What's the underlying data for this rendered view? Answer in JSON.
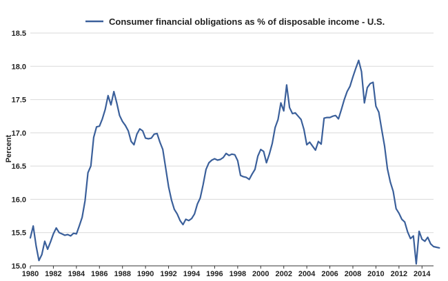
{
  "chart_data": {
    "type": "line",
    "title": "",
    "xlabel": "",
    "ylabel": "Percent",
    "xlim": [
      1980,
      2015
    ],
    "ylim": [
      15.0,
      18.5
    ],
    "x_ticks": [
      "1980",
      "1982",
      "1984",
      "1986",
      "1988",
      "1990",
      "1992",
      "1994",
      "1996",
      "1998",
      "2000",
      "2002",
      "2004",
      "2006",
      "2008",
      "2010",
      "2012",
      "2014"
    ],
    "y_ticks": [
      "15.0",
      "15.5",
      "16.0",
      "16.5",
      "17.0",
      "17.5",
      "18.0",
      "18.5"
    ],
    "grid": "horizontal",
    "legend_position": "top-center",
    "colors": {
      "line": "#3a5f9a",
      "grid": "#d9d9d9",
      "axis": "#333333"
    },
    "series": [
      {
        "name": "Consumer financial obligations as % of disposable income - U.S.",
        "points": [
          [
            1980.0,
            15.42
          ],
          [
            1980.25,
            15.6
          ],
          [
            1980.5,
            15.3
          ],
          [
            1980.75,
            15.08
          ],
          [
            1981.0,
            15.17
          ],
          [
            1981.25,
            15.37
          ],
          [
            1981.5,
            15.25
          ],
          [
            1981.75,
            15.36
          ],
          [
            1982.0,
            15.48
          ],
          [
            1982.25,
            15.57
          ],
          [
            1982.5,
            15.5
          ],
          [
            1982.75,
            15.48
          ],
          [
            1983.0,
            15.46
          ],
          [
            1983.25,
            15.47
          ],
          [
            1983.5,
            15.45
          ],
          [
            1983.75,
            15.49
          ],
          [
            1984.0,
            15.48
          ],
          [
            1984.25,
            15.6
          ],
          [
            1984.5,
            15.73
          ],
          [
            1984.75,
            15.98
          ],
          [
            1985.0,
            16.4
          ],
          [
            1985.25,
            16.5
          ],
          [
            1985.5,
            16.93
          ],
          [
            1985.75,
            17.09
          ],
          [
            1986.0,
            17.1
          ],
          [
            1986.25,
            17.21
          ],
          [
            1986.5,
            17.35
          ],
          [
            1986.75,
            17.56
          ],
          [
            1987.0,
            17.42
          ],
          [
            1987.25,
            17.62
          ],
          [
            1987.5,
            17.45
          ],
          [
            1987.75,
            17.26
          ],
          [
            1988.0,
            17.17
          ],
          [
            1988.25,
            17.11
          ],
          [
            1988.5,
            17.03
          ],
          [
            1988.75,
            16.87
          ],
          [
            1989.0,
            16.82
          ],
          [
            1989.25,
            16.98
          ],
          [
            1989.5,
            17.06
          ],
          [
            1989.75,
            17.03
          ],
          [
            1990.0,
            16.92
          ],
          [
            1990.25,
            16.91
          ],
          [
            1990.5,
            16.92
          ],
          [
            1990.75,
            16.98
          ],
          [
            1991.0,
            16.99
          ],
          [
            1991.25,
            16.86
          ],
          [
            1991.5,
            16.75
          ],
          [
            1991.75,
            16.47
          ],
          [
            1992.0,
            16.19
          ],
          [
            1992.25,
            15.99
          ],
          [
            1992.5,
            15.85
          ],
          [
            1992.75,
            15.78
          ],
          [
            1993.0,
            15.68
          ],
          [
            1993.25,
            15.62
          ],
          [
            1993.5,
            15.7
          ],
          [
            1993.75,
            15.68
          ],
          [
            1994.0,
            15.71
          ],
          [
            1994.25,
            15.78
          ],
          [
            1994.5,
            15.93
          ],
          [
            1994.75,
            16.02
          ],
          [
            1995.0,
            16.22
          ],
          [
            1995.25,
            16.45
          ],
          [
            1995.5,
            16.55
          ],
          [
            1995.75,
            16.59
          ],
          [
            1996.0,
            16.61
          ],
          [
            1996.25,
            16.59
          ],
          [
            1996.5,
            16.6
          ],
          [
            1996.75,
            16.63
          ],
          [
            1997.0,
            16.69
          ],
          [
            1997.25,
            16.66
          ],
          [
            1997.5,
            16.68
          ],
          [
            1997.75,
            16.67
          ],
          [
            1998.0,
            16.58
          ],
          [
            1998.25,
            16.36
          ],
          [
            1998.5,
            16.34
          ],
          [
            1998.75,
            16.33
          ],
          [
            1999.0,
            16.3
          ],
          [
            1999.25,
            16.38
          ],
          [
            1999.5,
            16.45
          ],
          [
            1999.75,
            16.65
          ],
          [
            2000.0,
            16.75
          ],
          [
            2000.25,
            16.72
          ],
          [
            2000.5,
            16.55
          ],
          [
            2000.75,
            16.68
          ],
          [
            2001.0,
            16.84
          ],
          [
            2001.25,
            17.08
          ],
          [
            2001.5,
            17.2
          ],
          [
            2001.75,
            17.45
          ],
          [
            2002.0,
            17.33
          ],
          [
            2002.25,
            17.72
          ],
          [
            2002.5,
            17.38
          ],
          [
            2002.75,
            17.29
          ],
          [
            2003.0,
            17.3
          ],
          [
            2003.25,
            17.25
          ],
          [
            2003.5,
            17.2
          ],
          [
            2003.75,
            17.05
          ],
          [
            2004.0,
            16.82
          ],
          [
            2004.25,
            16.86
          ],
          [
            2004.5,
            16.8
          ],
          [
            2004.75,
            16.74
          ],
          [
            2005.0,
            16.87
          ],
          [
            2005.25,
            16.83
          ],
          [
            2005.5,
            17.22
          ],
          [
            2005.75,
            17.23
          ],
          [
            2006.0,
            17.23
          ],
          [
            2006.25,
            17.25
          ],
          [
            2006.5,
            17.26
          ],
          [
            2006.75,
            17.21
          ],
          [
            2007.0,
            17.35
          ],
          [
            2007.25,
            17.5
          ],
          [
            2007.5,
            17.62
          ],
          [
            2007.75,
            17.7
          ],
          [
            2008.0,
            17.84
          ],
          [
            2008.25,
            17.97
          ],
          [
            2008.5,
            18.09
          ],
          [
            2008.75,
            17.92
          ],
          [
            2009.0,
            17.45
          ],
          [
            2009.25,
            17.68
          ],
          [
            2009.5,
            17.74
          ],
          [
            2009.75,
            17.76
          ],
          [
            2010.0,
            17.4
          ],
          [
            2010.25,
            17.31
          ],
          [
            2010.5,
            17.05
          ],
          [
            2010.75,
            16.8
          ],
          [
            2011.0,
            16.46
          ],
          [
            2011.25,
            16.26
          ],
          [
            2011.5,
            16.12
          ],
          [
            2011.75,
            15.86
          ],
          [
            2012.0,
            15.79
          ],
          [
            2012.25,
            15.7
          ],
          [
            2012.5,
            15.66
          ],
          [
            2012.75,
            15.51
          ],
          [
            2013.0,
            15.41
          ],
          [
            2013.25,
            15.45
          ],
          [
            2013.5,
            15.03
          ],
          [
            2013.75,
            15.52
          ],
          [
            2014.0,
            15.4
          ],
          [
            2014.25,
            15.37
          ],
          [
            2014.5,
            15.43
          ],
          [
            2014.75,
            15.33
          ],
          [
            2015.0,
            15.29
          ],
          [
            2015.25,
            15.28
          ],
          [
            2015.5,
            15.27
          ]
        ]
      }
    ]
  }
}
